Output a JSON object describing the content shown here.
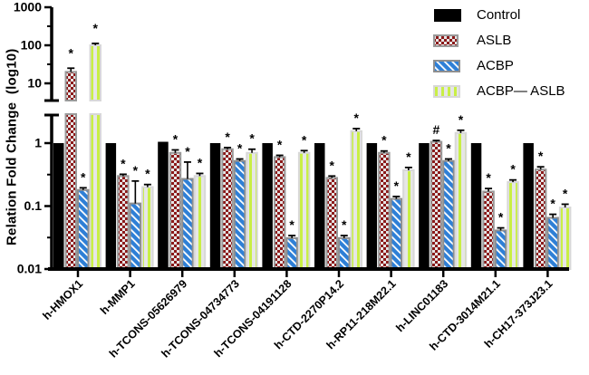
{
  "figure": {
    "background": "#ffffff",
    "axis_break": true,
    "sig_markers": {
      "asterisk": "*",
      "hash": "#"
    }
  },
  "chart_data": {
    "type": "bar",
    "scale": "log10",
    "title": "",
    "xlabel": "",
    "ylabel": "Relation Fold Change  (log10)",
    "grid": false,
    "legend_position": "top-right",
    "broken_axis": {
      "top_panel": {
        "ticks": [
          1000,
          100,
          10
        ],
        "range": [
          3.5,
          1000
        ]
      },
      "bottom_panel": {
        "ticks": [
          1,
          0.1,
          0.01
        ],
        "range": [
          0.01,
          2.9
        ]
      }
    },
    "categories": [
      "h-HMOX1",
      "h-MMP1",
      "h-TCONS-05626979",
      "h-TCONS-04734773",
      "h-TCONS-04191128",
      "h-CTD-2270P14.2",
      "h-RP11-218M22.1",
      "h-LINC01183",
      "h-CTD-3014M21.1",
      "h-CH17-373J23.1"
    ],
    "series": [
      {
        "name": "Control",
        "key": "control",
        "color": "#000000",
        "values": [
          1,
          1,
          1.05,
          1,
          1,
          1,
          1,
          1,
          1,
          1
        ],
        "errors": [
          0,
          0,
          0,
          0,
          0,
          0,
          0,
          0,
          0,
          0
        ],
        "sig": [
          null,
          null,
          null,
          null,
          null,
          null,
          null,
          null,
          null,
          null
        ]
      },
      {
        "name": "ASLB",
        "key": "aslb",
        "color": "#8b1a1a",
        "values": [
          20,
          0.3,
          0.7,
          0.8,
          0.6,
          0.28,
          0.7,
          1.05,
          0.17,
          0.38
        ],
        "errors": [
          5,
          0.02,
          0.08,
          0.05,
          0.04,
          0.02,
          0.05,
          0.05,
          0.02,
          0.04
        ],
        "sig": [
          "*",
          "*",
          "*",
          "*",
          "*",
          "*",
          "*",
          "#",
          "*",
          "*"
        ]
      },
      {
        "name": "ACBP",
        "key": "acbp",
        "color": "#2e7fd6",
        "values": [
          0.18,
          0.11,
          0.27,
          0.52,
          0.031,
          0.031,
          0.13,
          0.52,
          0.041,
          0.065
        ],
        "errors": [
          0.015,
          0.14,
          0.23,
          0.04,
          0.003,
          0.003,
          0.012,
          0.04,
          0.004,
          0.009
        ],
        "sig": [
          "*",
          "*",
          "*",
          "*",
          "*",
          "*",
          "*",
          "*",
          "*",
          "*"
        ]
      },
      {
        "name": "ACBP— ASLB",
        "key": "acbp_aslb",
        "color": "#c9ef45",
        "values": [
          100,
          0.2,
          0.3,
          0.7,
          0.7,
          1.55,
          0.37,
          1.45,
          0.24,
          0.095
        ],
        "errors": [
          12,
          0.02,
          0.03,
          0.1,
          0.06,
          0.15,
          0.04,
          0.15,
          0.02,
          0.012
        ],
        "sig": [
          "*",
          "*",
          "*",
          "*",
          "*",
          "*",
          "*",
          "*",
          "*",
          "*"
        ]
      }
    ]
  },
  "colors": {
    "axis": "#000000",
    "aslb_pattern": "#8b1a1a",
    "aslb_bg": "#e6e6e6",
    "acbp_pattern": "#2e7fd6",
    "acbp_stripe": "#ffffff",
    "acbp_aslb_pattern": "#c9ef45",
    "acbp_aslb_bg": "#e6e6e6",
    "casing_dark": "#9a9a9a",
    "casing_light": "#d8d8d8"
  }
}
